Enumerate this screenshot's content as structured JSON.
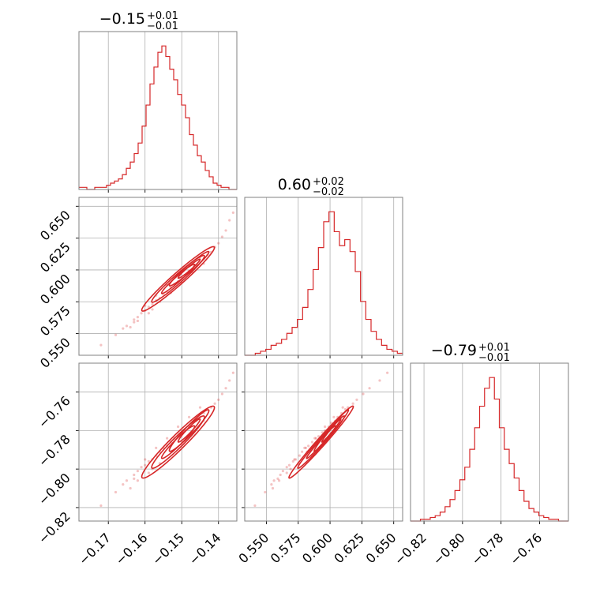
{
  "chart_data": {
    "type": "corner",
    "color": "#d62728",
    "parameters": [
      {
        "title_value": "−0.15",
        "title_plus": "+0.01",
        "title_minus": "−0.01",
        "range": [
          -0.178,
          -0.135
        ],
        "ticks": [
          -0.17,
          -0.16,
          -0.15,
          -0.14
        ],
        "tick_labels": [
          "−0.17",
          "−0.16",
          "−0.15",
          "−0.14"
        ],
        "hist_range": [
          -0.178,
          -0.135
        ],
        "hist_counts": [
          1,
          1,
          0,
          0,
          1,
          1,
          1,
          2,
          3,
          4,
          5,
          7,
          10,
          13,
          17,
          22,
          30,
          40,
          50,
          58,
          65,
          68,
          63,
          57,
          52,
          45,
          40,
          34,
          26,
          21,
          16,
          13,
          9,
          6,
          3,
          2,
          1,
          1,
          0,
          0
        ]
      },
      {
        "title_value": "0.60",
        "title_plus": "+0.02",
        "title_minus": "−0.02",
        "range": [
          0.533,
          0.657
        ],
        "ticks": [
          0.55,
          0.575,
          0.6,
          0.625,
          0.65
        ],
        "tick_labels": [
          "0.550",
          "0.575",
          "0.600",
          "0.625",
          "0.650"
        ],
        "hist_range": [
          0.533,
          0.657
        ],
        "hist_counts": [
          0,
          0,
          1,
          2,
          3,
          5,
          6,
          8,
          11,
          14,
          18,
          24,
          33,
          43,
          54,
          67,
          72,
          62,
          55,
          58,
          52,
          42,
          27,
          18,
          12,
          8,
          5,
          3,
          2,
          1
        ]
      },
      {
        "title_value": "−0.79",
        "title_plus": "+0.01",
        "title_minus": "−0.01",
        "range": [
          -0.827,
          -0.745
        ],
        "ticks": [
          -0.82,
          -0.8,
          -0.78,
          -0.76
        ],
        "tick_labels": [
          "−0.82",
          "−0.80",
          "−0.78",
          "−0.76"
        ],
        "hist_range": [
          -0.827,
          -0.745
        ],
        "hist_counts": [
          0,
          0,
          1,
          1,
          2,
          3,
          5,
          8,
          12,
          17,
          23,
          30,
          40,
          52,
          64,
          74,
          80,
          68,
          52,
          40,
          32,
          24,
          17,
          11,
          7,
          5,
          3,
          2,
          1,
          1,
          0,
          0
        ]
      }
    ],
    "scatter_samples": [
      [
        -0.172,
        0.541,
        -0.819
      ],
      [
        -0.168,
        0.549,
        -0.812
      ],
      [
        -0.166,
        0.554,
        -0.808
      ],
      [
        -0.165,
        0.556,
        -0.806
      ],
      [
        -0.163,
        0.561,
        -0.803
      ],
      [
        -0.162,
        0.563,
        -0.801
      ],
      [
        -0.161,
        0.566,
        -0.799
      ],
      [
        -0.16,
        0.568,
        -0.798
      ],
      [
        -0.159,
        0.571,
        -0.796
      ],
      [
        -0.158,
        0.573,
        -0.795
      ],
      [
        -0.157,
        0.576,
        -0.793
      ],
      [
        -0.156,
        0.578,
        -0.791
      ],
      [
        -0.155,
        0.581,
        -0.789
      ],
      [
        -0.154,
        0.583,
        -0.788
      ],
      [
        -0.153,
        0.586,
        -0.786
      ],
      [
        -0.152,
        0.589,
        -0.784
      ],
      [
        -0.151,
        0.591,
        -0.783
      ],
      [
        -0.15,
        0.594,
        -0.781
      ],
      [
        -0.149,
        0.596,
        -0.78
      ],
      [
        -0.148,
        0.599,
        -0.778
      ],
      [
        -0.147,
        0.601,
        -0.776
      ],
      [
        -0.146,
        0.604,
        -0.775
      ],
      [
        -0.145,
        0.606,
        -0.773
      ],
      [
        -0.144,
        0.609,
        -0.771
      ],
      [
        -0.143,
        0.612,
        -0.769
      ],
      [
        -0.142,
        0.614,
        -0.768
      ],
      [
        -0.141,
        0.618,
        -0.766
      ],
      [
        -0.14,
        0.621,
        -0.764
      ],
      [
        -0.139,
        0.626,
        -0.761
      ],
      [
        -0.138,
        0.631,
        -0.758
      ],
      [
        -0.137,
        0.639,
        -0.754
      ],
      [
        -0.136,
        0.645,
        -0.75
      ],
      [
        -0.164,
        0.555,
        -0.81
      ],
      [
        -0.162,
        0.56,
        -0.806
      ],
      [
        -0.158,
        0.569,
        -0.8
      ],
      [
        -0.156,
        0.575,
        -0.797
      ],
      [
        -0.153,
        0.582,
        -0.791
      ],
      [
        -0.15,
        0.59,
        -0.786
      ],
      [
        -0.147,
        0.598,
        -0.781
      ],
      [
        -0.144,
        0.605,
        -0.775
      ],
      [
        -0.16,
        0.572,
        -0.795
      ],
      [
        -0.157,
        0.58,
        -0.789
      ],
      [
        -0.154,
        0.588,
        -0.784
      ],
      [
        -0.151,
        0.596,
        -0.778
      ],
      [
        -0.148,
        0.603,
        -0.773
      ],
      [
        -0.145,
        0.61,
        -0.768
      ],
      [
        -0.163,
        0.559,
        -0.805
      ],
      [
        -0.159,
        0.566,
        -0.802
      ]
    ],
    "contours": [
      {
        "center": [
          -0.151,
          0.593,
          -0.786
        ],
        "sigma": [
          0.0045,
          0.0115,
          0.0085
        ],
        "corr": [
          0.97,
          0.96,
          0.985
        ],
        "levels": [
          1.0,
          1.6,
          2.2
        ]
      },
      {
        "center": [
          -0.148,
          0.601,
          -0.78
        ],
        "sigma": [
          0.003,
          0.0075,
          0.006
        ],
        "corr": [
          0.97,
          0.96,
          0.985
        ],
        "levels": [
          1.0,
          1.8
        ]
      }
    ]
  }
}
